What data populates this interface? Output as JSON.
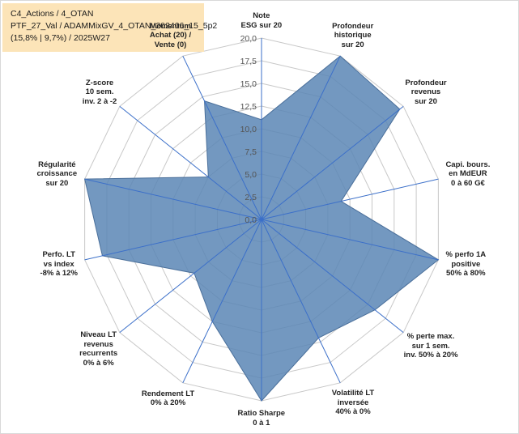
{
  "title": {
    "line1": "C4_Actions / 4_OTAN",
    "line2": "PTF_27_Val / ADAMMixGV_4_OTAN_202406_15_5p2",
    "line3": "(15,8% | 9,7%) / 2025W27"
  },
  "chart_data": {
    "type": "radar",
    "rmin": 0,
    "rmax": 20,
    "tick_step": 2.5,
    "tick_labels": [
      "0,0",
      "2,5",
      "5,0",
      "7,5",
      "10,0",
      "12,5",
      "15,0",
      "17,5",
      "20,0"
    ],
    "grid": true,
    "series": [
      {
        "color": "#5b86b5",
        "values": [
          11.0,
          20.0,
          19.5,
          9.0,
          20.0,
          16.0,
          14.5,
          20.0,
          12.5,
          9.5,
          18.0,
          20.0,
          7.5,
          14.5
        ]
      }
    ],
    "axes": [
      "Note\nESG sur 20",
      "Profondeur\nhistorique\nsur 20",
      "Profondeur\nrevenus\nsur 20",
      "Capi. bours.\nen MdEUR\n0 à 60 G€",
      "% perfo 1A\npositive\n50% à 80%",
      "% perte max.\nsur 1 sem.\ninv. 50% à 20%",
      "Volatilité LT\ninversée\n40% à 0%",
      "Ratio Sharpe\n0 à 1",
      "Rendement LT\n0% à 20%",
      "Niveau LT\nrevenus\nrecurrents\n0% à 6%",
      "Perfo. LT\nvs index\n-8% à 12%",
      "Régularité\ncroissance\nsur 20",
      "Z-score\n10 sem.\ninv. 2 à -2",
      "Momentum\nAchat (20) /\nVente (0)"
    ]
  }
}
